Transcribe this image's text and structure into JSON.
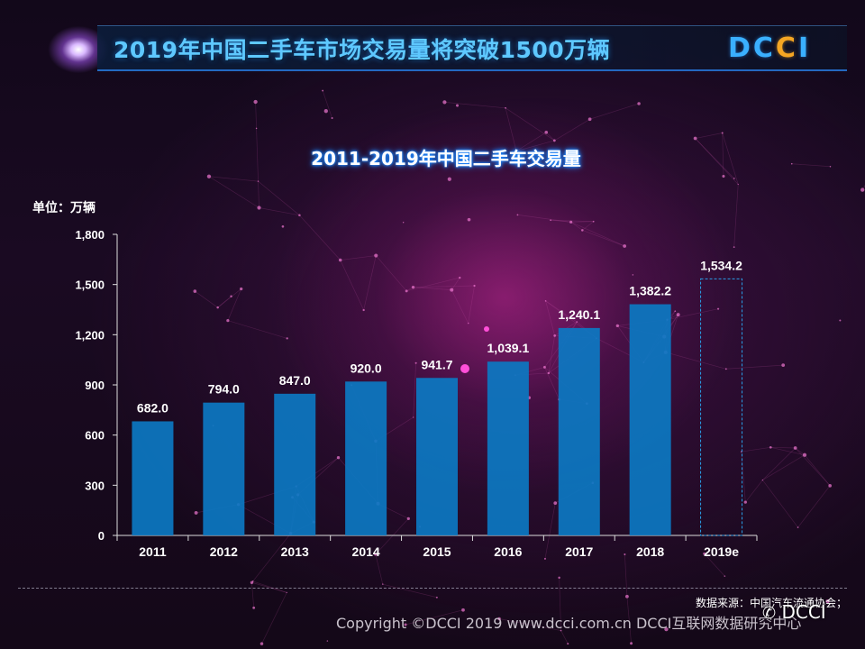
{
  "header": {
    "title": "2019年中国二手车市场交易量将突破1500万辆",
    "logo_part1": "DC",
    "logo_part2": "C",
    "logo_part3": "I"
  },
  "unit_label": "单位：万辆",
  "chart_data": {
    "type": "bar",
    "title": "2011-2019年中国二手车交易量",
    "categories": [
      "2011",
      "2012",
      "2013",
      "2014",
      "2015",
      "2016",
      "2017",
      "2018",
      "2019e"
    ],
    "values": [
      682.0,
      794.0,
      847.0,
      920.0,
      941.7,
      1039.1,
      1240.1,
      1382.2,
      1534.2
    ],
    "data_labels": [
      "682.0",
      "794.0",
      "847.0",
      "920.0",
      "941.7",
      "1,039.1",
      "1,240.1",
      "1,382.2",
      "1,534.2"
    ],
    "estimated": [
      false,
      false,
      false,
      false,
      false,
      false,
      false,
      false,
      true
    ],
    "ylabel": "单位：万辆",
    "xlabel": "",
    "ylim": [
      0,
      1800
    ],
    "yticks": [
      0,
      300,
      600,
      900,
      1200,
      1500,
      1800
    ],
    "ytick_labels": [
      "0",
      "300",
      "600",
      "900",
      "1,200",
      "1,500",
      "1,800"
    ],
    "grid": false,
    "bar_color": "#0c78c2",
    "estimate_border_color": "#2a9fe8"
  },
  "footer": {
    "source": "数据来源：中国汽车流通协会；",
    "copyright": "Copyright ©DCCI 2019  www.dcci.com.cn   DCCI互联网数据研究中心",
    "wechat_icon": "wechat-icon",
    "wechat_name": "DCCI"
  },
  "colors": {
    "title": "#5ec8ff",
    "logo_blue": "#3ab0ff",
    "logo_orange": "#f5a623",
    "chart_title_glow": "#1e88ff"
  }
}
